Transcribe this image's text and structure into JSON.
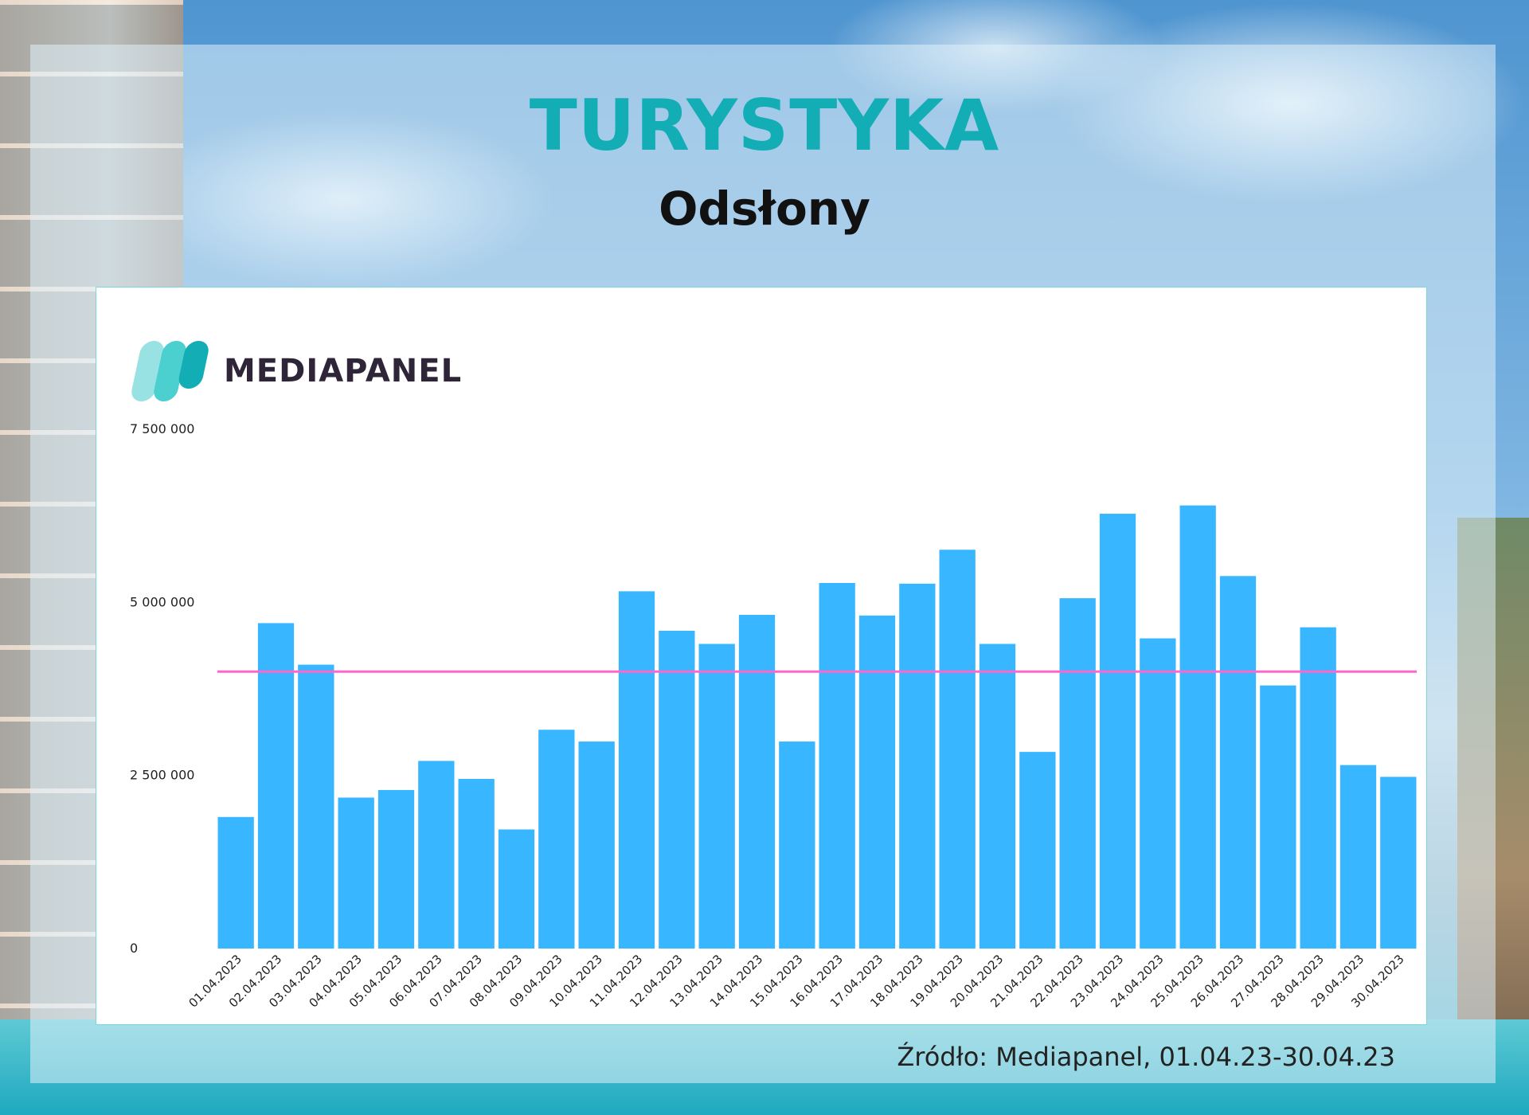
{
  "header": {
    "title": "TURYSTYKA",
    "subtitle": "Odsłony"
  },
  "logo": {
    "text": "MEDIAPANEL",
    "colors": [
      "#99e2e3",
      "#4ccfcf",
      "#13adb5"
    ]
  },
  "source": "Źródło: Mediapanel, 01.04.23-30.04.23",
  "colors": {
    "title": "#13adb5",
    "bar": "#38b6ff",
    "average_line": "#ff66cc",
    "panel_border": "#7fd6d8"
  },
  "chart_data": {
    "type": "bar",
    "title": "Odsłony",
    "ylim": [
      0,
      7500000
    ],
    "y_ticks": [
      {
        "value": 0,
        "label": "0"
      },
      {
        "value": 2500000,
        "label": "2 500 000"
      },
      {
        "value": 5000000,
        "label": "5 000 000"
      },
      {
        "value": 7500000,
        "label": "7 500 000"
      }
    ],
    "grid": false,
    "legend": "none",
    "average_line": 4000000,
    "categories": [
      "01.04.2023",
      "02.04.2023",
      "03.04.2023",
      "04.04.2023",
      "05.04.2023",
      "06.04.2023",
      "07.04.2023",
      "08.04.2023",
      "09.04.2023",
      "10.04.2023",
      "11.04.2023",
      "12.04.2023",
      "13.04.2023",
      "14.04.2023",
      "15.04.2023",
      "16.04.2023",
      "17.04.2023",
      "18.04.2023",
      "19.04.2023",
      "20.04.2023",
      "21.04.2023",
      "22.04.2023",
      "23.04.2023",
      "24.04.2023",
      "25.04.2023",
      "26.04.2023",
      "27.04.2023",
      "28.04.2023",
      "29.04.2023",
      "30.04.2023"
    ],
    "values": [
      1900000,
      4700000,
      4100000,
      2180000,
      2290000,
      2710000,
      2450000,
      1720000,
      3160000,
      2990000,
      5160000,
      4590000,
      4400000,
      4820000,
      2990000,
      5280000,
      4810000,
      5270000,
      5760000,
      4400000,
      2840000,
      5060000,
      6280000,
      4480000,
      6400000,
      5380000,
      3800000,
      4640000,
      2650000,
      2480000
    ]
  }
}
